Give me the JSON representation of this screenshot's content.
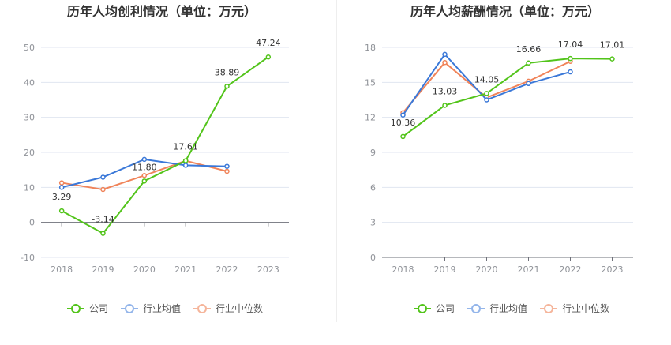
{
  "chart_data": [
    {
      "type": "line",
      "title": "历年人均创利情况（单位：万元）",
      "categories": [
        "2018",
        "2019",
        "2020",
        "2021",
        "2022",
        "2023"
      ],
      "ylim": [
        -10,
        50
      ],
      "yticks": [
        "-10",
        "0",
        "10",
        "20",
        "30",
        "40",
        "50"
      ],
      "grid": true,
      "legend_position": "bottom",
      "series": [
        {
          "name": "公司",
          "color": "#52c41a",
          "values": [
            3.29,
            -3.14,
            11.8,
            17.61,
            38.89,
            47.24
          ],
          "labels": [
            "3.29",
            "-3.14",
            "11.80",
            "17.61",
            "38.89",
            "47.24"
          ]
        },
        {
          "name": "行业均值",
          "color": "#3a78d8",
          "values": [
            10.0,
            12.9,
            18.0,
            16.3,
            16.0,
            null
          ]
        },
        {
          "name": "行业中位数",
          "color": "#f0845a",
          "values": [
            11.3,
            9.4,
            13.4,
            17.6,
            14.6,
            null
          ]
        }
      ]
    },
    {
      "type": "line",
      "title": "历年人均薪酬情况（单位：万元）",
      "categories": [
        "2018",
        "2019",
        "2020",
        "2021",
        "2022",
        "2023"
      ],
      "ylim": [
        0,
        18
      ],
      "yticks": [
        "0",
        "3",
        "6",
        "9",
        "12",
        "15",
        "18"
      ],
      "grid": true,
      "legend_position": "bottom",
      "series": [
        {
          "name": "公司",
          "color": "#52c41a",
          "values": [
            10.36,
            13.03,
            14.05,
            16.66,
            17.04,
            17.01
          ],
          "labels": [
            "10.36",
            "13.03",
            "14.05",
            "16.66",
            "17.04",
            "17.01"
          ]
        },
        {
          "name": "行业均值",
          "color": "#3a78d8",
          "values": [
            12.2,
            17.4,
            13.5,
            14.9,
            15.9,
            null
          ]
        },
        {
          "name": "行业中位数",
          "color": "#f0845a",
          "values": [
            12.4,
            16.7,
            13.7,
            15.1,
            16.8,
            null
          ]
        }
      ]
    }
  ]
}
